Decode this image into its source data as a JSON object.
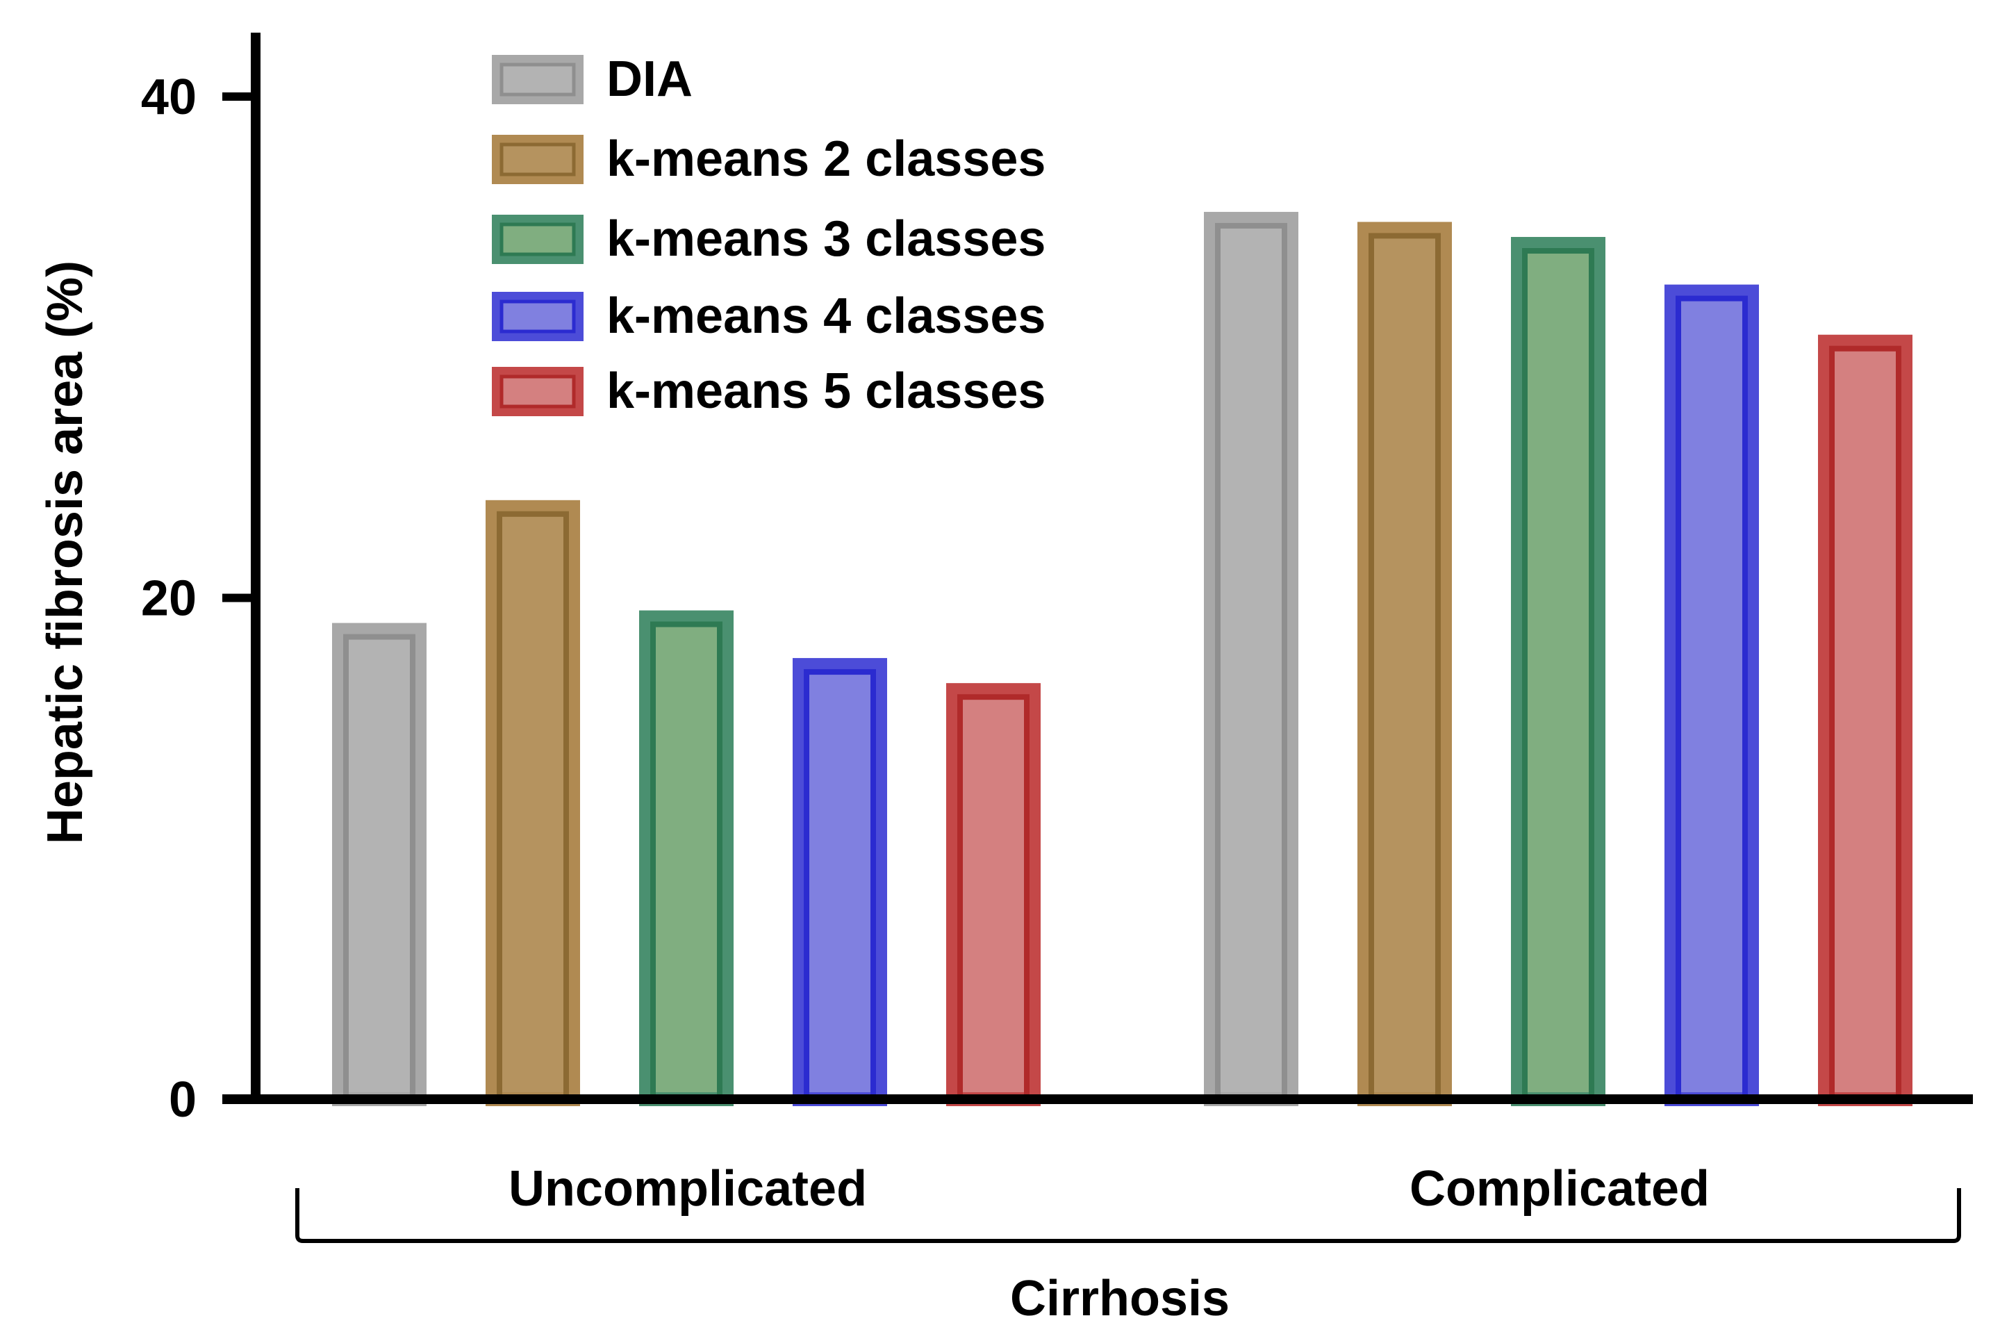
{
  "chart_data": {
    "type": "bar",
    "title": "",
    "xlabel": "Cirrhosis",
    "ylabel": "Hepatic fibrosis area (%)",
    "ylim": [
      0,
      42
    ],
    "yticks": [
      0,
      20,
      40
    ],
    "yticks_labels": [
      "0",
      "20",
      "40"
    ],
    "grid": false,
    "legend_position": "top-left",
    "categories": [
      "Uncomplicated",
      "Complicated"
    ],
    "series": [
      {
        "name": "DIA",
        "values": [
          19.0,
          35.4
        ],
        "fill": "#b3b3b3",
        "stroke": "#8f8f8f",
        "stroke_outer": "#a8a8a8"
      },
      {
        "name": "k-means 2 classes",
        "values": [
          23.9,
          35.0
        ],
        "fill": "#b5935f",
        "stroke": "#8c6a33",
        "stroke_outer": "#b08a52"
      },
      {
        "name": "k-means 3 classes",
        "values": [
          19.5,
          34.4
        ],
        "fill": "#80ae80",
        "stroke": "#2e7a53",
        "stroke_outer": "#4a9070"
      },
      {
        "name": "k-means 4 classes",
        "values": [
          17.6,
          32.5
        ],
        "fill": "#8080e0",
        "stroke": "#2b2bd0",
        "stroke_outer": "#4c4cd8"
      },
      {
        "name": "k-means 5 classes",
        "values": [
          16.6,
          30.5
        ],
        "fill": "#d48080",
        "stroke": "#b02a2a",
        "stroke_outer": "#c44848"
      }
    ]
  }
}
